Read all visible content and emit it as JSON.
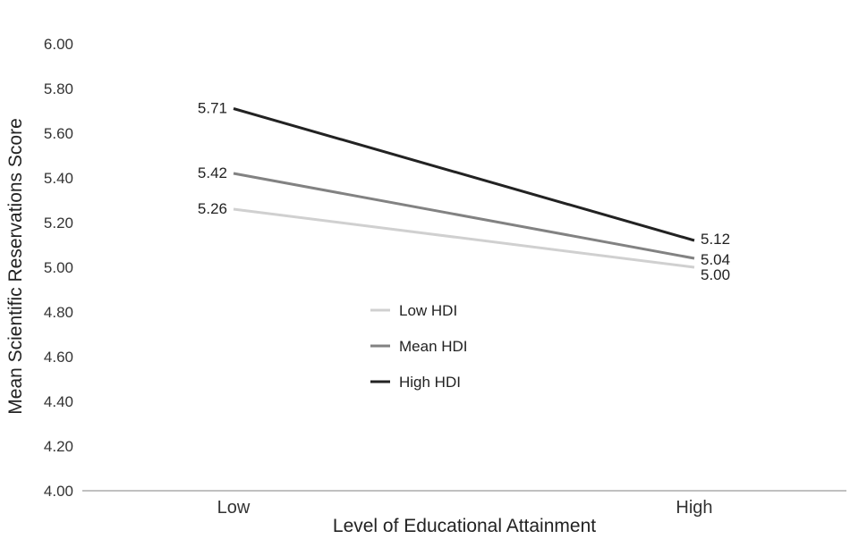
{
  "chart_data": {
    "type": "line",
    "title": "",
    "xlabel": "Level of Educational Attainment",
    "ylabel": "Mean Scientific Reservations Score",
    "categories": [
      "Low",
      "High"
    ],
    "ylim": [
      4.0,
      6.0
    ],
    "yticks": [
      "4.00",
      "4.20",
      "4.40",
      "4.60",
      "4.80",
      "5.00",
      "5.20",
      "5.40",
      "5.60",
      "5.80",
      "6.00"
    ],
    "grid": false,
    "legend_position": "center",
    "series": [
      {
        "name": "Low HDI",
        "values": [
          5.26,
          5.0
        ],
        "labels": [
          "5.26",
          "5.00"
        ],
        "color": "#d0d0d0"
      },
      {
        "name": "Mean HDI",
        "values": [
          5.42,
          5.04
        ],
        "labels": [
          "5.42",
          "5.04"
        ],
        "color": "#828282"
      },
      {
        "name": "High HDI",
        "values": [
          5.71,
          5.12
        ],
        "labels": [
          "5.71",
          "5.12"
        ],
        "color": "#222222"
      }
    ]
  }
}
